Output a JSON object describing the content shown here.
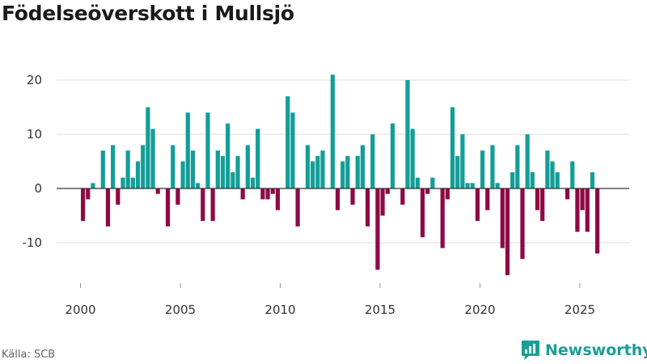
{
  "title": "Födelseöverskott i Mullsjö",
  "source": "Källa: SCB",
  "brand": {
    "name": "Newsworthy",
    "icon": "newsworthy-logo-icon"
  },
  "colors": {
    "positive": "#139e98",
    "negative": "#8e0a45",
    "grid": "#dddddd",
    "zero_line": "#333333",
    "brand": "#1a9f95"
  },
  "chart_data": {
    "type": "bar",
    "title": "Födelseöverskott i Mullsjö",
    "xlabel": "",
    "ylabel": "",
    "frequency": "quarterly",
    "xlim": [
      1999,
      2027.5
    ],
    "ylim": [
      -20,
      25
    ],
    "y_ticks": [
      -10,
      0,
      10,
      20
    ],
    "x_ticks": [
      2000,
      2005,
      2010,
      2015,
      2020,
      2025
    ],
    "grid": true,
    "start": {
      "year": 2000,
      "quarter": 1
    },
    "values": [
      -6,
      -2,
      1,
      0,
      7,
      -7,
      8,
      -3,
      2,
      7,
      2,
      5,
      8,
      15,
      11,
      -1,
      0,
      -7,
      8,
      -3,
      5,
      14,
      7,
      1,
      -6,
      14,
      -6,
      7,
      6,
      12,
      3,
      6,
      -2,
      8,
      2,
      11,
      -2,
      -2,
      -1,
      -4,
      0,
      17,
      14,
      -7,
      0,
      8,
      5,
      6,
      7,
      0,
      21,
      -4,
      5,
      6,
      -3,
      6,
      8,
      -7,
      10,
      -15,
      -5,
      -1,
      12,
      0,
      -3,
      20,
      11,
      2,
      -9,
      -1,
      2,
      0,
      -11,
      -2,
      15,
      6,
      10,
      1,
      1,
      -6,
      7,
      -4,
      8,
      1,
      -11,
      -16,
      3,
      8,
      -13,
      10,
      3,
      -4,
      -6,
      7,
      5,
      3,
      0,
      -2,
      5,
      -8,
      -4,
      -8,
      3,
      -12
    ]
  }
}
